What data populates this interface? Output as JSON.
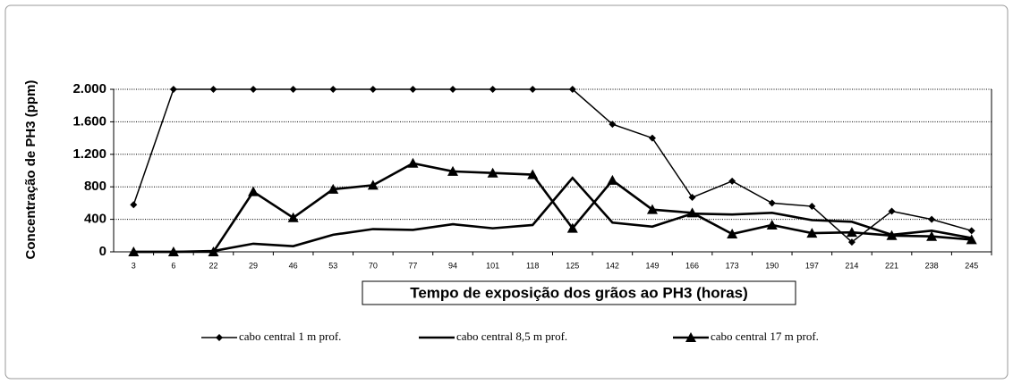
{
  "chart_data": {
    "type": "line",
    "y_label": "Concentração de PH3 (ppm)",
    "x_label": "Tempo de exposição dos grãos ao PH3 (horas)",
    "categories": [
      "3",
      "6",
      "22",
      "29",
      "46",
      "53",
      "70",
      "77",
      "94",
      "101",
      "118",
      "125",
      "142",
      "149",
      "166",
      "173",
      "190",
      "197",
      "214",
      "221",
      "238",
      "245"
    ],
    "ylim": [
      0,
      2000
    ],
    "yticks": [
      0,
      400,
      800,
      {
        "value": 1200,
        "label": "1.200"
      },
      {
        "value": 1600,
        "label": "1.600"
      },
      {
        "value": 2000,
        "label": "2.000"
      }
    ],
    "grid": true,
    "series": [
      {
        "name": "cabo central 1 m prof.",
        "color": "#000000",
        "marker": "diamond",
        "values": [
          580,
          2000,
          2000,
          2000,
          2000,
          2000,
          2000,
          2000,
          2000,
          2000,
          2000,
          2000,
          1570,
          1400,
          670,
          870,
          600,
          560,
          120,
          500,
          400,
          260
        ]
      },
      {
        "name": "cabo central 8,5 m prof.",
        "color": "#000000",
        "marker": "none",
        "values": [
          0,
          0,
          10,
          100,
          70,
          210,
          280,
          270,
          340,
          290,
          330,
          910,
          360,
          310,
          470,
          460,
          480,
          390,
          370,
          210,
          260,
          170
        ]
      },
      {
        "name": "cabo central 17 m prof.",
        "color": "#000000",
        "marker": "triangle",
        "values": [
          0,
          0,
          0,
          740,
          420,
          770,
          820,
          1090,
          990,
          970,
          950,
          290,
          880,
          520,
          480,
          220,
          330,
          230,
          240,
          200,
          190,
          150
        ]
      }
    ]
  }
}
